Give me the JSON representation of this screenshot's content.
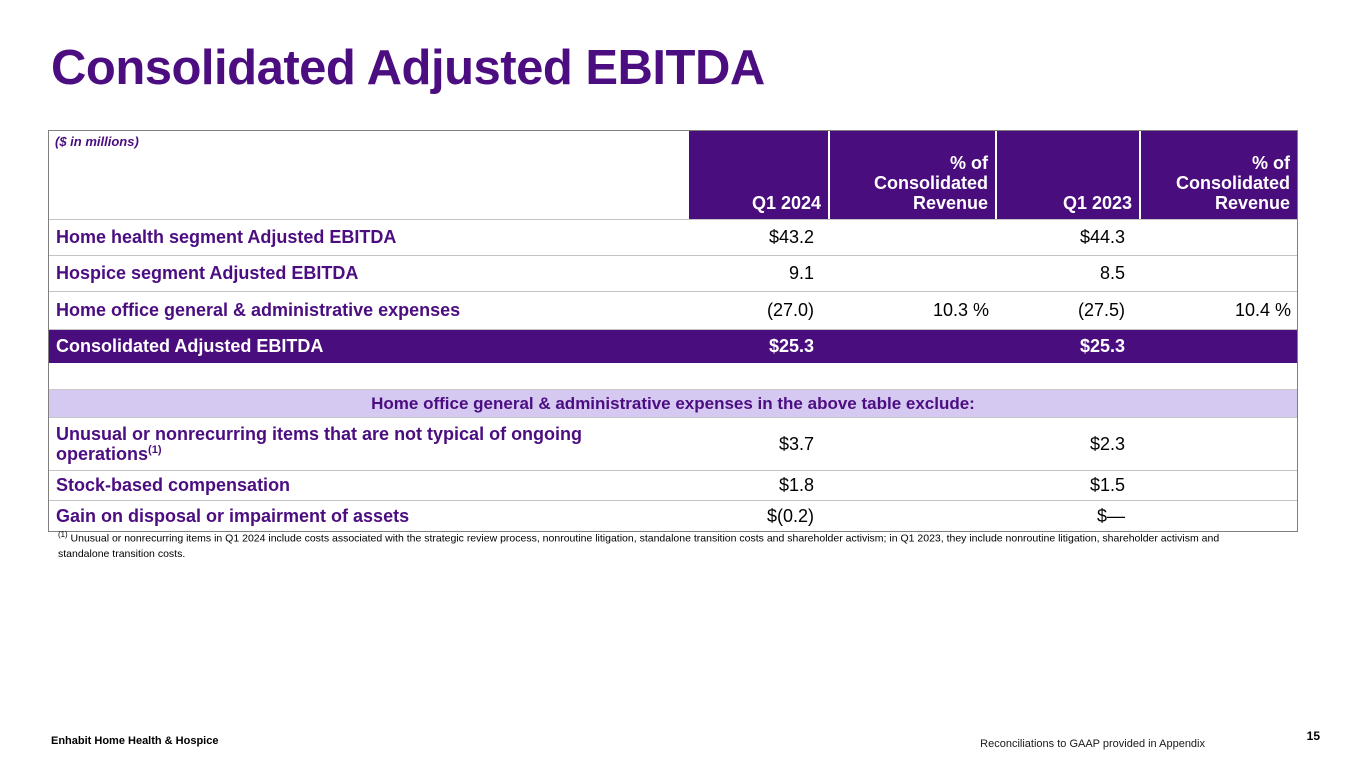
{
  "slide": {
    "title": "Consolidated Adjusted EBITDA",
    "page_number": "15"
  },
  "table": {
    "units_note": "($ in millions)",
    "columns": {
      "q1_2024": "Q1 2024",
      "pct_2024": "% of\nConsolidated\nRevenue",
      "q1_2023": "Q1 2023",
      "pct_2023": "% of\nConsolidated\nRevenue"
    },
    "rows_main": [
      {
        "label": "Home health segment Adjusted EBITDA",
        "q1_2024": "$43.2",
        "pct_2024": "",
        "q1_2023": "$44.3",
        "pct_2023": ""
      },
      {
        "label": "Hospice segment Adjusted EBITDA",
        "q1_2024": "9.1",
        "pct_2024": "",
        "q1_2023": "8.5",
        "pct_2023": ""
      },
      {
        "label": "Home office general & administrative expenses",
        "q1_2024": "(27.0)",
        "pct_2024": "10.3 %",
        "q1_2023": "(27.5)",
        "pct_2023": "10.4 %"
      }
    ],
    "total_row": {
      "label": "Consolidated Adjusted EBITDA",
      "q1_2024": "$25.3",
      "q1_2023": "$25.3"
    },
    "exclusions_header": "Home office general & administrative expenses in the above table exclude:",
    "rows_exclusions": [
      {
        "label": "Unusual or nonrecurring items that are not typical of ongoing operations",
        "footnote_ref": "(1)",
        "q1_2024": "$3.7",
        "q1_2023": "$2.3"
      },
      {
        "label": "Stock-based compensation",
        "footnote_ref": "",
        "q1_2024": "$1.8",
        "q1_2023": "$1.5"
      },
      {
        "label": "Gain on disposal or impairment of assets",
        "footnote_ref": "",
        "q1_2024": "$(0.2)",
        "q1_2023": "$—"
      }
    ]
  },
  "footnote": {
    "ref": "(1)",
    "text": " Unusual or nonrecurring items in Q1 2024 include costs associated with the strategic review process, nonroutine litigation, standalone transition costs and shareholder activism; in Q1 2023, they include nonroutine litigation, shareholder activism and standalone transition costs."
  },
  "footer": {
    "left": "Enhabit Home Health & Hospice",
    "right": "Reconciliations to GAAP provided in Appendix"
  },
  "colors": {
    "brand_purple": "#4A0D7E",
    "text_purple": "#4B0D80",
    "light_lavender": "#D5C9F2",
    "row_line_gray": "#C4C4C4",
    "table_border_gray": "#7F7F7F"
  }
}
